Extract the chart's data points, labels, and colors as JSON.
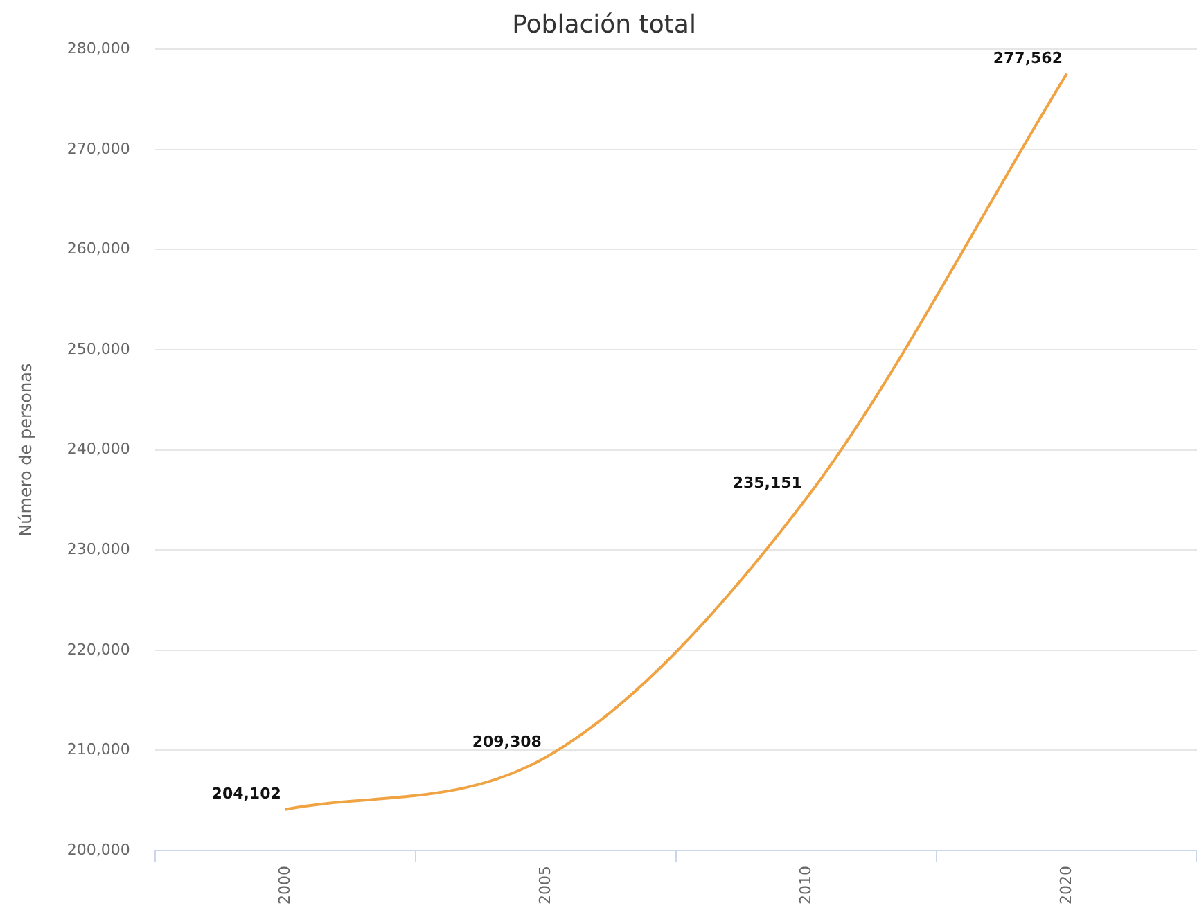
{
  "chart_data": {
    "type": "line",
    "title": "Población total",
    "ylabel": "Número de personas",
    "categories": [
      "2000",
      "2005",
      "2010",
      "2020"
    ],
    "series": [
      {
        "color": "#f0a342",
        "values": [
          204102,
          209308,
          235151,
          277562
        ],
        "value_labels": [
          "204,102",
          "209,308",
          "235,151",
          "277,562"
        ]
      }
    ],
    "ylim": [
      200000,
      280000
    ],
    "yticks": [
      {
        "value": 200000,
        "label": "200,000"
      },
      {
        "value": 210000,
        "label": "210,000"
      },
      {
        "value": 220000,
        "label": "220,000"
      },
      {
        "value": 230000,
        "label": "230,000"
      },
      {
        "value": 240000,
        "label": "240,000"
      },
      {
        "value": 250000,
        "label": "250,000"
      },
      {
        "value": 260000,
        "label": "260,000"
      },
      {
        "value": 270000,
        "label": "270,000"
      },
      {
        "value": 280000,
        "label": "280,000"
      }
    ],
    "grid": "y",
    "legend": false,
    "marker": "none"
  }
}
